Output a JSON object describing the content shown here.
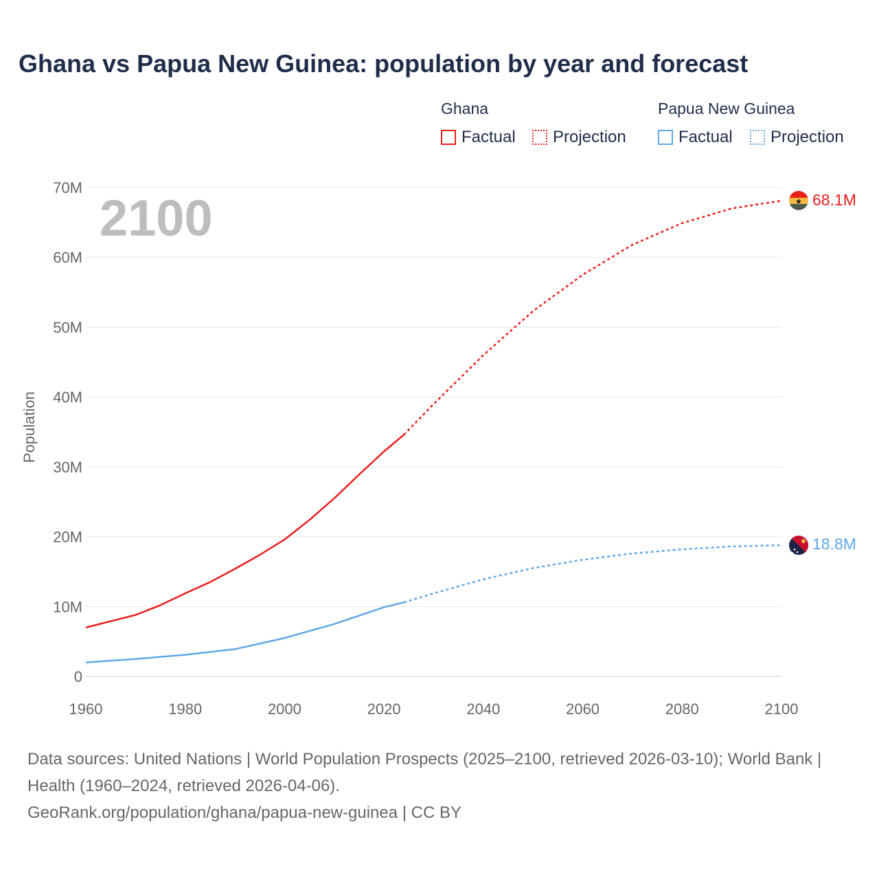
{
  "title": "Ghana vs Papua New Guinea: population by year and forecast",
  "legend": {
    "groups": [
      {
        "name": "Ghana",
        "factual_label": "Factual",
        "projection_label": "Projection",
        "color": "#ee1c1c"
      },
      {
        "name": "Papua New Guinea",
        "factual_label": "Factual",
        "projection_label": "Projection",
        "color": "#5fa6e6"
      }
    ]
  },
  "chart_data": {
    "type": "line",
    "title": "Ghana vs Papua New Guinea: population by year and forecast",
    "xlabel": "",
    "ylabel": "Population",
    "xlim": [
      1960,
      2100
    ],
    "ylim": [
      0,
      70000000
    ],
    "x_ticks": [
      1960,
      1980,
      2000,
      2020,
      2040,
      2060,
      2080,
      2100
    ],
    "y_ticks": [
      {
        "value": 0,
        "label": "0"
      },
      {
        "value": 10000000,
        "label": "10M"
      },
      {
        "value": 20000000,
        "label": "20M"
      },
      {
        "value": 30000000,
        "label": "30M"
      },
      {
        "value": 40000000,
        "label": "40M"
      },
      {
        "value": 50000000,
        "label": "50M"
      },
      {
        "value": 60000000,
        "label": "60M"
      },
      {
        "value": 70000000,
        "label": "70M"
      }
    ],
    "grid": true,
    "watermark_year": "2100",
    "series": [
      {
        "name": "Ghana",
        "color": "#ee1c1c",
        "end_label": "68.1M",
        "factual": [
          [
            1960,
            7.0
          ],
          [
            1965,
            7.9
          ],
          [
            1970,
            8.8
          ],
          [
            1975,
            10.2
          ],
          [
            1980,
            11.9
          ],
          [
            1985,
            13.5
          ],
          [
            1990,
            15.4
          ],
          [
            1995,
            17.4
          ],
          [
            2000,
            19.6
          ],
          [
            2005,
            22.4
          ],
          [
            2010,
            25.5
          ],
          [
            2015,
            28.9
          ],
          [
            2020,
            32.2
          ],
          [
            2024,
            34.6
          ]
        ],
        "projection": [
          [
            2024,
            34.6
          ],
          [
            2030,
            39.0
          ],
          [
            2040,
            46.0
          ],
          [
            2050,
            52.3
          ],
          [
            2060,
            57.5
          ],
          [
            2070,
            61.8
          ],
          [
            2080,
            64.9
          ],
          [
            2090,
            67.0
          ],
          [
            2100,
            68.1
          ]
        ]
      },
      {
        "name": "Papua New Guinea",
        "color": "#5fa6e6",
        "end_label": "18.8M",
        "factual": [
          [
            1960,
            2.0
          ],
          [
            1970,
            2.5
          ],
          [
            1980,
            3.1
          ],
          [
            1990,
            3.9
          ],
          [
            2000,
            5.5
          ],
          [
            2010,
            7.5
          ],
          [
            2020,
            9.9
          ],
          [
            2024,
            10.6
          ]
        ],
        "projection": [
          [
            2024,
            10.6
          ],
          [
            2030,
            11.9
          ],
          [
            2040,
            13.9
          ],
          [
            2050,
            15.5
          ],
          [
            2060,
            16.7
          ],
          [
            2070,
            17.6
          ],
          [
            2080,
            18.2
          ],
          [
            2090,
            18.6
          ],
          [
            2100,
            18.8
          ]
        ]
      }
    ]
  },
  "footer": {
    "sources": "Data sources: United Nations | World Population Prospects (2025–2100, retrieved 2026-03-10); World Bank | Health (1960–2024, retrieved 2026-04-06).",
    "url": "GeoRank.org/population/ghana/papua-new-guinea | CC BY"
  }
}
